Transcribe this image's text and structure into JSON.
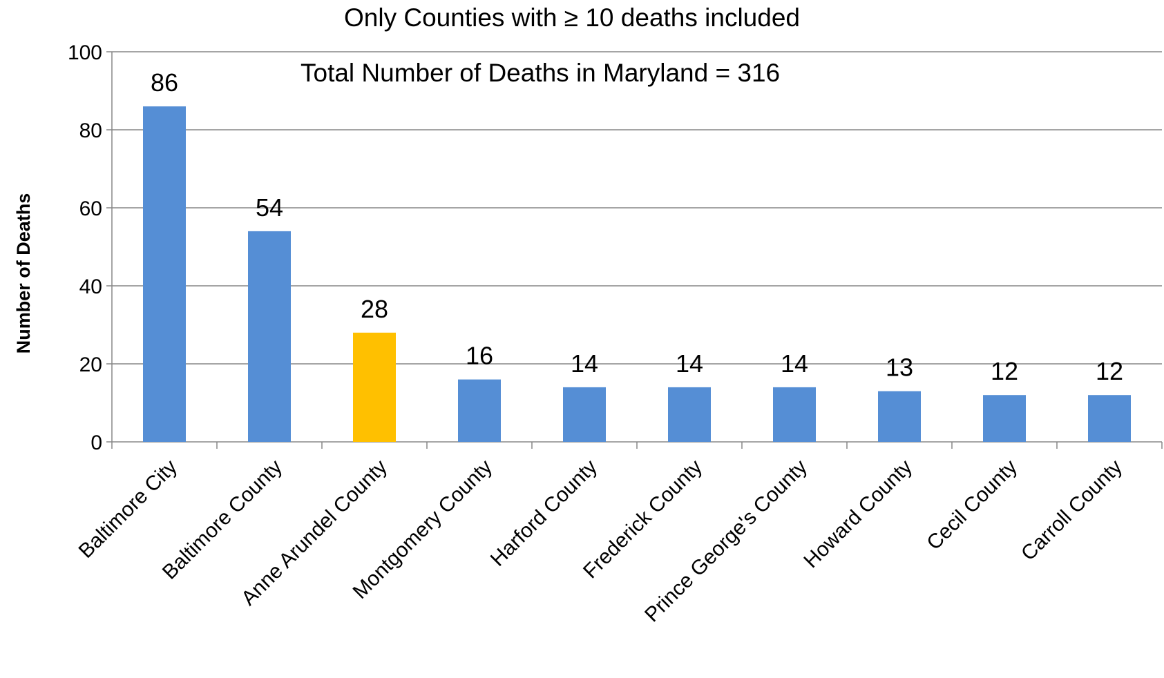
{
  "chart_data": {
    "type": "bar",
    "subtitle": "Only Counties with ≥ 10 deaths included",
    "annotation": "Total Number of Deaths in Maryland = 316",
    "xlabel": "",
    "ylabel": "Number of Deaths",
    "ylim": [
      0,
      100
    ],
    "yticks": [
      0,
      20,
      40,
      60,
      80,
      100
    ],
    "grid": true,
    "legend": "none",
    "categories": [
      "Baltimore City",
      "Baltimore County",
      "Anne Arundel County",
      "Montgomery County",
      "Harford County",
      "Frederick County",
      "Prince George's County",
      "Howard County",
      "Cecil County",
      "Carroll County"
    ],
    "values": [
      86,
      54,
      28,
      16,
      14,
      14,
      14,
      13,
      12,
      12
    ],
    "bar_colors": [
      "#558ED5",
      "#558ED5",
      "#FFC000",
      "#558ED5",
      "#558ED5",
      "#558ED5",
      "#558ED5",
      "#558ED5",
      "#558ED5",
      "#558ED5"
    ]
  }
}
